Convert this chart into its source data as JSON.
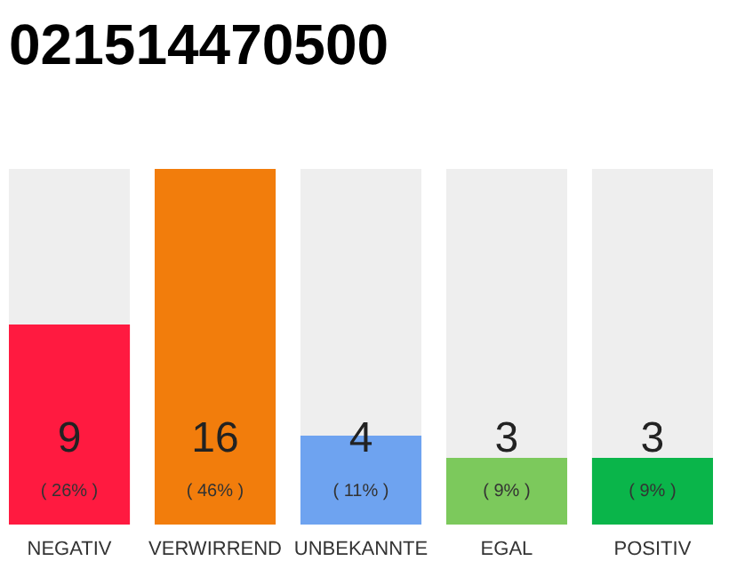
{
  "chart_data": {
    "type": "bar",
    "title": "021514470500",
    "categories": [
      "NEGATIV",
      "VERWIRREND",
      "UNBEKANNTE",
      "EGAL",
      "POSITIV"
    ],
    "values": [
      9,
      16,
      4,
      3,
      3
    ],
    "colors": [
      "#ff1a40",
      "#f27d0c",
      "#6ea3f0",
      "#7cc95c",
      "#0ab54a"
    ],
    "ylim": [
      0,
      16
    ],
    "tick_labels": "x",
    "data_labels": true,
    "annotations": [
      "( 26% )",
      "( 46% )",
      "( 11% )",
      "( 9% )",
      "( 9% )"
    ]
  }
}
